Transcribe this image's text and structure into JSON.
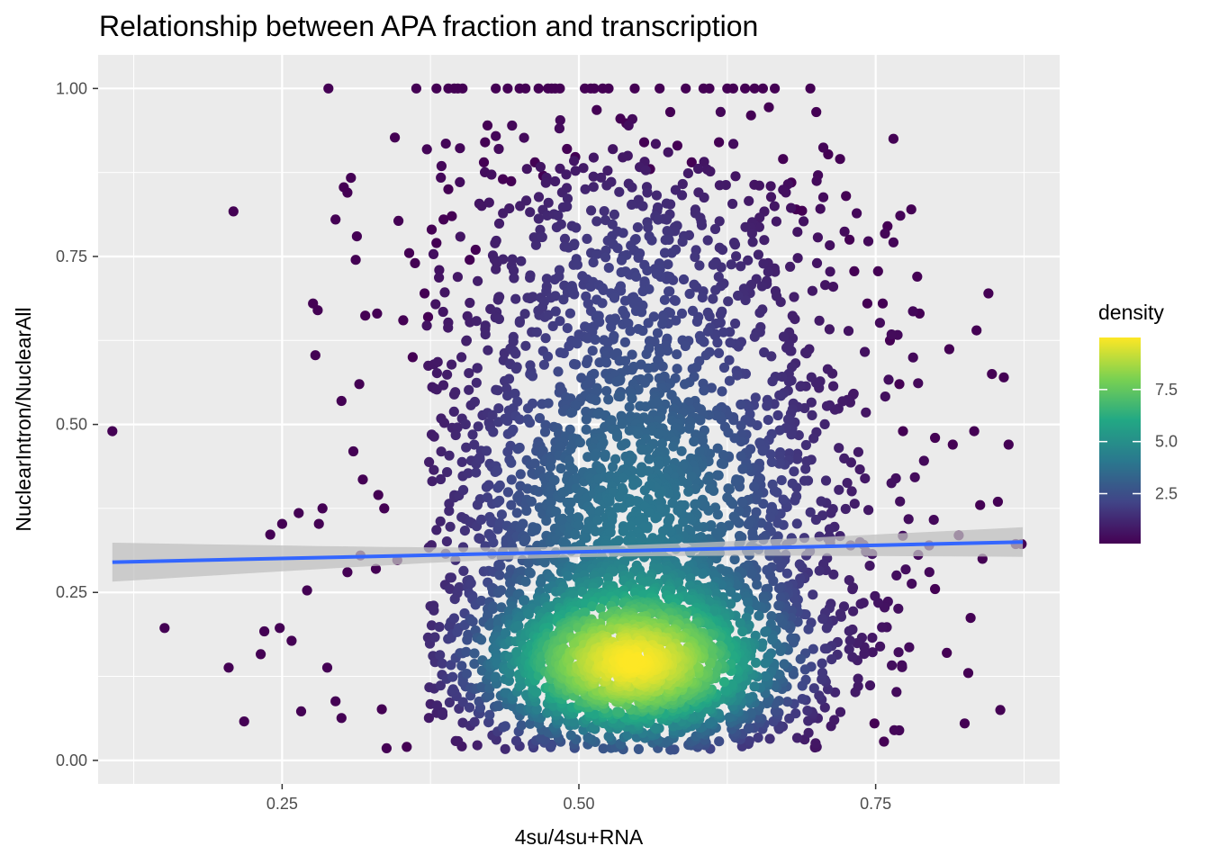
{
  "chart_data": {
    "type": "scatter",
    "title": "Relationship between APA fraction and transcription",
    "xlabel": "4su/4su+RNA",
    "ylabel": "NuclearIntron/NuclearAll",
    "xlim": [
      0.095,
      0.905
    ],
    "ylim": [
      -0.035,
      1.05
    ],
    "x_ticks": [
      {
        "value": 0.25,
        "label": "0.25"
      },
      {
        "value": 0.5,
        "label": "0.50"
      },
      {
        "value": 0.75,
        "label": "0.75"
      }
    ],
    "y_ticks": [
      {
        "value": 0.0,
        "label": "0.00"
      },
      {
        "value": 0.25,
        "label": "0.25"
      },
      {
        "value": 0.5,
        "label": "0.50"
      },
      {
        "value": 0.75,
        "label": "0.75"
      },
      {
        "value": 1.0,
        "label": "1.00"
      }
    ],
    "grid": true,
    "panel_background": "#ebebeb",
    "grid_color": "#ffffff",
    "regression": {
      "method": "linear",
      "color": "#3366ff",
      "band_color": "#c0c0c0",
      "x_start": 0.107,
      "y_start": 0.295,
      "x_end": 0.874,
      "y_end": 0.325,
      "band_halfwidth_start": 0.029,
      "band_halfwidth_mid": 0.008,
      "band_halfwidth_end": 0.022
    },
    "color_scale": {
      "name": "density",
      "palette": "viridis",
      "colors": [
        "#440154",
        "#414487",
        "#2a788e",
        "#22a884",
        "#7ad151",
        "#fde725"
      ],
      "min": 0.1,
      "max": 10.0,
      "ticks": [
        {
          "value": 2.5,
          "label": "2.5"
        },
        {
          "value": 5.0,
          "label": "5.0"
        },
        {
          "value": 7.5,
          "label": "7.5"
        }
      ]
    },
    "legend": {
      "placement": "right",
      "title": "density"
    },
    "points_outliers": [
      [
        0.107,
        0.49
      ],
      [
        0.151,
        0.197
      ],
      [
        0.209,
        0.817
      ],
      [
        0.205,
        0.138
      ],
      [
        0.218,
        0.058
      ],
      [
        0.232,
        0.158
      ],
      [
        0.235,
        0.192
      ],
      [
        0.24,
        0.336
      ],
      [
        0.248,
        0.197
      ],
      [
        0.25,
        0.352
      ],
      [
        0.258,
        0.178
      ],
      [
        0.264,
        0.368
      ],
      [
        0.266,
        0.073
      ],
      [
        0.271,
        0.253
      ],
      [
        0.276,
        0.68
      ],
      [
        0.278,
        0.603
      ],
      [
        0.28,
        0.67
      ],
      [
        0.281,
        0.352
      ],
      [
        0.284,
        0.375
      ],
      [
        0.288,
        0.138
      ],
      [
        0.289,
        1.0
      ],
      [
        0.295,
        0.805
      ],
      [
        0.295,
        0.088
      ],
      [
        0.3,
        0.063
      ],
      [
        0.3,
        0.535
      ],
      [
        0.302,
        0.853
      ],
      [
        0.305,
        0.845
      ],
      [
        0.305,
        0.28
      ],
      [
        0.308,
        0.867
      ],
      [
        0.31,
        0.46
      ],
      [
        0.312,
        0.745
      ],
      [
        0.313,
        0.78
      ],
      [
        0.315,
        0.56
      ],
      [
        0.316,
        0.305
      ],
      [
        0.318,
        0.418
      ],
      [
        0.32,
        0.662
      ],
      [
        0.329,
        0.285
      ],
      [
        0.331,
        0.395
      ],
      [
        0.33,
        0.665
      ],
      [
        0.334,
        0.076
      ],
      [
        0.336,
        0.375
      ],
      [
        0.338,
        0.018
      ],
      [
        0.345,
        0.927
      ],
      [
        0.347,
        0.298
      ],
      [
        0.348,
        0.803
      ],
      [
        0.352,
        0.655
      ],
      [
        0.355,
        0.02
      ],
      [
        0.357,
        0.755
      ],
      [
        0.36,
        0.6
      ],
      [
        0.362,
        0.74
      ],
      [
        0.363,
        1.0
      ],
      [
        0.37,
        0.695
      ],
      [
        0.373,
        0.66
      ],
      [
        0.376,
        0.79
      ],
      [
        0.38,
        0.77
      ],
      [
        0.38,
        1.0
      ],
      [
        0.386,
        0.805
      ],
      [
        0.39,
        1.0
      ],
      [
        0.39,
        0.85
      ],
      [
        0.393,
        0.81
      ],
      [
        0.395,
        1.0
      ],
      [
        0.398,
        1.0
      ],
      [
        0.402,
        1.0
      ],
      [
        0.408,
        0.745
      ],
      [
        0.413,
        0.76
      ],
      [
        0.42,
        0.89
      ],
      [
        0.421,
        0.92
      ],
      [
        0.423,
        0.945
      ],
      [
        0.43,
        1.0
      ],
      [
        0.436,
        0.865
      ],
      [
        0.44,
        1.0
      ],
      [
        0.443,
        0.862
      ],
      [
        0.45,
        1.0
      ],
      [
        0.455,
        1.0
      ],
      [
        0.463,
        0.89
      ],
      [
        0.466,
        1.0
      ],
      [
        0.47,
        0.87
      ],
      [
        0.474,
        1.0
      ],
      [
        0.477,
        1.0
      ],
      [
        0.48,
        1.0
      ],
      [
        0.484,
        1.0
      ],
      [
        0.49,
        0.91
      ],
      [
        0.497,
        0.898
      ],
      [
        0.505,
        1.0
      ],
      [
        0.51,
        1.0
      ],
      [
        0.513,
        1.0
      ],
      [
        0.515,
        0.968
      ],
      [
        0.52,
        1.0
      ],
      [
        0.525,
        1.0
      ],
      [
        0.535,
        0.955
      ],
      [
        0.54,
        0.948
      ],
      [
        0.547,
        1.0
      ],
      [
        0.555,
        0.92
      ],
      [
        0.56,
        0.88
      ],
      [
        0.568,
        1.0
      ],
      [
        0.577,
        0.965
      ],
      [
        0.583,
        0.915
      ],
      [
        0.59,
        1.0
      ],
      [
        0.595,
        0.89
      ],
      [
        0.605,
        1.0
      ],
      [
        0.61,
        1.0
      ],
      [
        0.618,
        0.92
      ],
      [
        0.625,
        1.0
      ],
      [
        0.63,
        1.0
      ],
      [
        0.64,
        1.0
      ],
      [
        0.645,
        0.96
      ],
      [
        0.648,
        1.0
      ],
      [
        0.655,
        1.0
      ],
      [
        0.66,
        0.972
      ],
      [
        0.665,
        1.0
      ],
      [
        0.672,
        0.895
      ],
      [
        0.679,
        0.86
      ],
      [
        0.683,
        0.82
      ],
      [
        0.688,
        0.818
      ],
      [
        0.695,
        1.0
      ],
      [
        0.7,
        0.965
      ],
      [
        0.71,
        0.902
      ],
      [
        0.72,
        0.895
      ],
      [
        0.725,
        0.84
      ],
      [
        0.728,
        0.775
      ],
      [
        0.732,
        0.728
      ],
      [
        0.743,
        0.68
      ],
      [
        0.752,
        0.728
      ],
      [
        0.756,
        0.68
      ],
      [
        0.76,
        0.795
      ],
      [
        0.762,
        0.625
      ],
      [
        0.77,
        0.56
      ],
      [
        0.773,
        0.49
      ],
      [
        0.78,
        0.82
      ],
      [
        0.785,
        0.72
      ],
      [
        0.787,
        0.665
      ],
      [
        0.795,
        0.32
      ],
      [
        0.8,
        0.48
      ],
      [
        0.81,
        0.16
      ],
      [
        0.812,
        0.612
      ],
      [
        0.815,
        0.47
      ],
      [
        0.82,
        0.335
      ],
      [
        0.825,
        0.055
      ],
      [
        0.828,
        0.13
      ],
      [
        0.83,
        0.212
      ],
      [
        0.833,
        0.49
      ],
      [
        0.835,
        0.64
      ],
      [
        0.838,
        0.38
      ],
      [
        0.84,
        0.3
      ],
      [
        0.845,
        0.695
      ],
      [
        0.848,
        0.575
      ],
      [
        0.853,
        0.385
      ],
      [
        0.855,
        0.075
      ],
      [
        0.858,
        0.57
      ],
      [
        0.862,
        0.47
      ],
      [
        0.868,
        0.322
      ],
      [
        0.873,
        0.322
      ],
      [
        0.757,
        0.028
      ],
      [
        0.749,
        0.055
      ],
      [
        0.8,
        0.255
      ]
    ],
    "points_cloud": {
      "description_omitted": true,
      "clusters": [
        {
          "cx": 0.545,
          "cy": 0.14,
          "sx": 0.075,
          "sy": 0.07,
          "n": 1700
        },
        {
          "cx": 0.55,
          "cy": 0.33,
          "sx": 0.095,
          "sy": 0.15,
          "n": 1600
        },
        {
          "cx": 0.55,
          "cy": 0.58,
          "sx": 0.1,
          "sy": 0.14,
          "n": 650
        },
        {
          "cx": 0.54,
          "cy": 0.78,
          "sx": 0.085,
          "sy": 0.09,
          "n": 220
        }
      ],
      "x_range": [
        0.37,
        0.8
      ],
      "y_range": [
        0.015,
        0.97
      ],
      "seed": 20240517
    }
  }
}
